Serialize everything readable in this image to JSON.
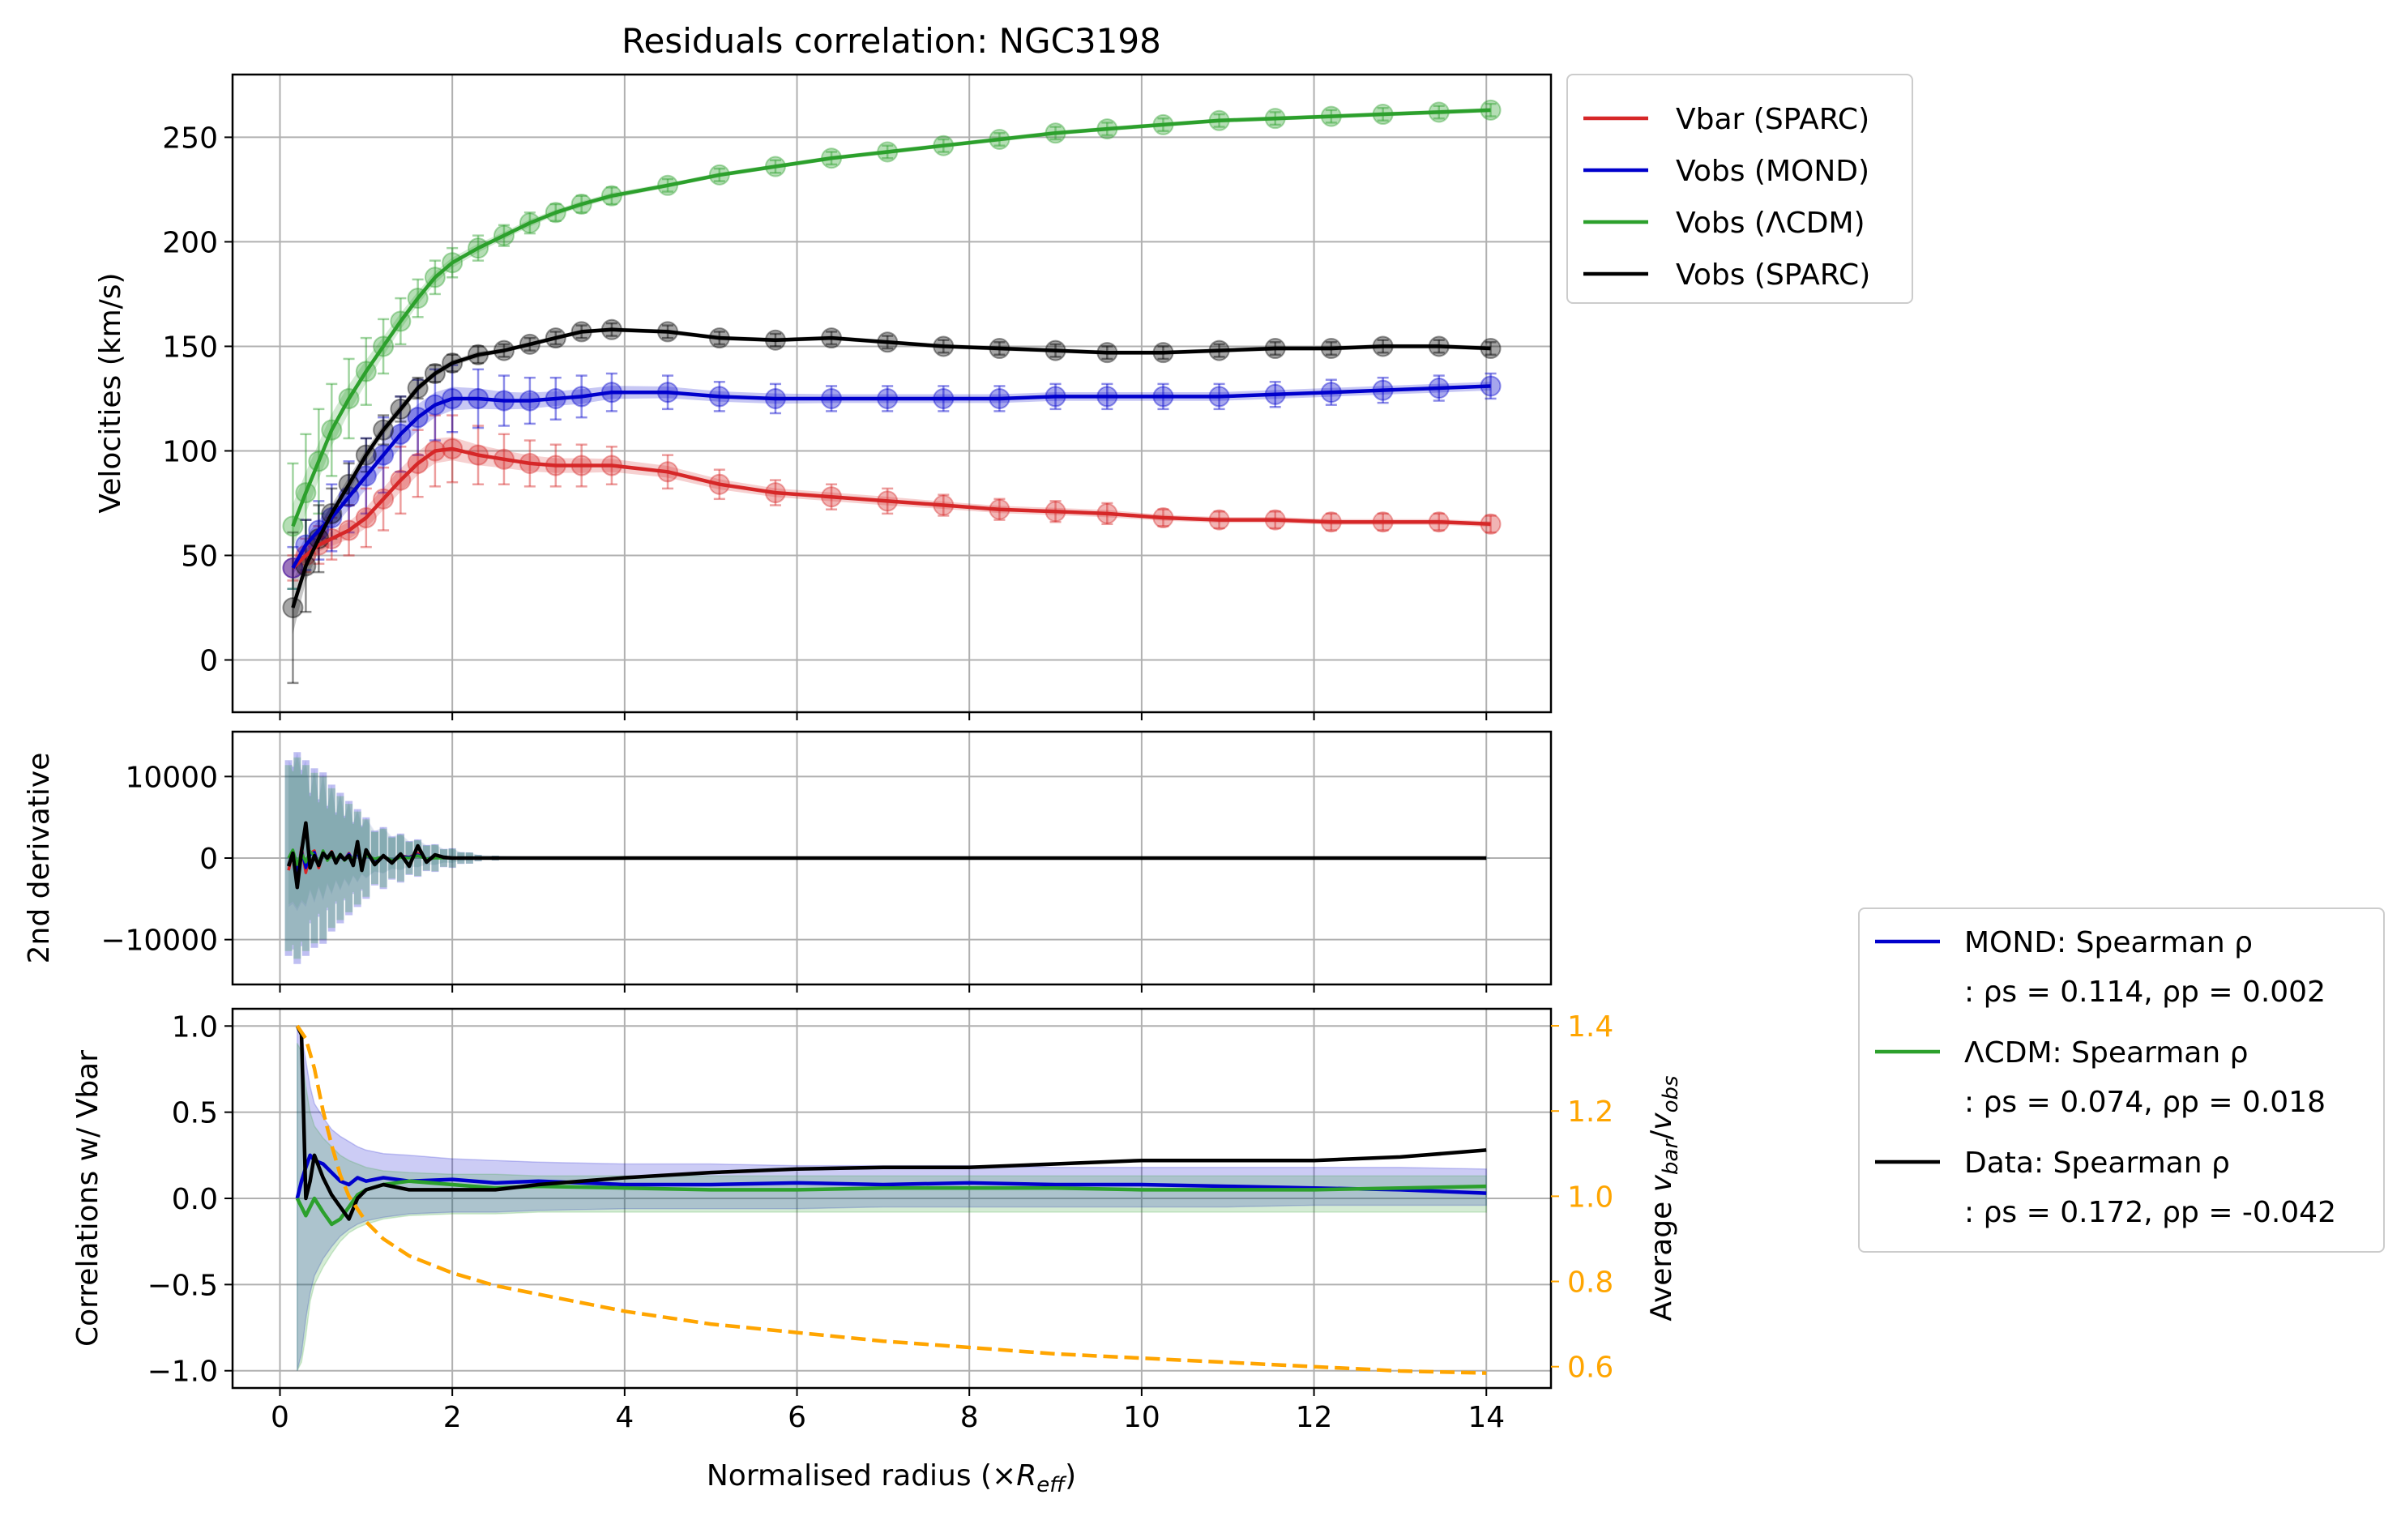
{
  "colors": {
    "vbar": "#d62728",
    "mond": "#0000cc",
    "lcdm": "#2ca02c",
    "data": "#000000",
    "ratio": "#ffa500",
    "grid": "#b0b0b0",
    "axis": "#000000"
  },
  "chart_data": [
    {
      "type": "line",
      "title": "Residuals correlation: NGC3198",
      "xlabel": "",
      "ylabel": "Velocities (km/s)",
      "xlim": [
        -0.55,
        14.75
      ],
      "ylim": [
        -25,
        280
      ],
      "xticks": [
        0,
        2,
        4,
        6,
        8,
        10,
        12,
        14
      ],
      "yticks": [
        0,
        50,
        100,
        150,
        200,
        250
      ],
      "ytick_labels": [
        "0",
        "50",
        "100",
        "150",
        "200",
        "250"
      ],
      "grid": true,
      "legend_position": "outside-top-right",
      "legend": [
        "Vbar (SPARC)",
        "Vobs (MOND)",
        "Vobs (ΛCDM)",
        "Vobs (SPARC)"
      ],
      "x": [
        0.15,
        0.3,
        0.45,
        0.6,
        0.8,
        1.0,
        1.2,
        1.4,
        1.6,
        1.8,
        2.0,
        2.3,
        2.6,
        2.9,
        3.2,
        3.5,
        3.85,
        4.5,
        5.1,
        5.75,
        6.4,
        7.05,
        7.7,
        8.35,
        9.0,
        9.6,
        10.25,
        10.9,
        11.55,
        12.2,
        12.8,
        13.45,
        14.05
      ],
      "series": [
        {
          "name": "Vbar (SPARC)",
          "key": "vbar",
          "values": [
            44,
            50,
            55,
            58,
            62,
            68,
            77,
            86,
            94,
            100,
            101,
            98,
            96,
            94,
            93,
            93,
            93,
            90,
            84,
            80,
            78,
            76,
            74,
            72,
            71,
            70,
            68,
            67,
            67,
            66,
            66,
            66,
            65
          ],
          "err": [
            6,
            8,
            9,
            10,
            12,
            14,
            15,
            16,
            16,
            17,
            16,
            14,
            12,
            11,
            10,
            10,
            9,
            8,
            7,
            6,
            6,
            6,
            5,
            5,
            5,
            5,
            4,
            4,
            4,
            4,
            4,
            4,
            4
          ]
        },
        {
          "name": "Vobs (MOND)",
          "key": "mond",
          "values": [
            44,
            55,
            62,
            68,
            78,
            88,
            98,
            108,
            116,
            122,
            125,
            125,
            124,
            124,
            125,
            126,
            128,
            128,
            126,
            125,
            125,
            125,
            125,
            125,
            126,
            126,
            126,
            126,
            127,
            128,
            129,
            130,
            131
          ],
          "err": [
            10,
            12,
            14,
            16,
            17,
            18,
            18,
            18,
            18,
            17,
            16,
            14,
            12,
            11,
            10,
            10,
            9,
            8,
            7,
            7,
            6,
            6,
            6,
            6,
            6,
            6,
            6,
            6,
            6,
            6,
            6,
            6,
            6
          ]
        },
        {
          "name": "Vobs (ΛCDM)",
          "key": "lcdm",
          "values": [
            64,
            80,
            95,
            110,
            125,
            138,
            150,
            162,
            173,
            183,
            190,
            197,
            203,
            209,
            214,
            218,
            222,
            227,
            232,
            236,
            240,
            243,
            246,
            249,
            252,
            254,
            256,
            258,
            259,
            260,
            261,
            262,
            263
          ],
          "err": [
            30,
            28,
            25,
            22,
            19,
            16,
            13,
            11,
            9,
            8,
            7,
            6,
            5,
            5,
            4,
            4,
            4,
            3,
            3,
            3,
            3,
            3,
            3,
            3,
            3,
            3,
            3,
            3,
            3,
            3,
            3,
            3,
            3
          ]
        },
        {
          "name": "Vobs (SPARC)",
          "key": "data",
          "values": [
            25,
            45,
            58,
            70,
            84,
            98,
            110,
            120,
            130,
            137,
            142,
            146,
            148,
            151,
            154,
            157,
            158,
            157,
            154,
            153,
            154,
            152,
            150,
            149,
            148,
            147,
            147,
            148,
            149,
            149,
            150,
            150,
            149
          ],
          "err": [
            36,
            22,
            16,
            12,
            10,
            8,
            7,
            6,
            5,
            4,
            4,
            4,
            3,
            3,
            3,
            3,
            3,
            3,
            3,
            3,
            3,
            3,
            3,
            3,
            3,
            3,
            3,
            3,
            3,
            3,
            3,
            3,
            3
          ]
        }
      ]
    },
    {
      "type": "line",
      "ylabel": "2nd derivative",
      "xlim": [
        -0.55,
        14.75
      ],
      "ylim": [
        -15500,
        15500
      ],
      "yticks": [
        -10000,
        0,
        10000
      ],
      "ytick_labels": [
        "−10000",
        "0",
        "10000"
      ],
      "grid": true,
      "x": [
        0.1,
        0.15,
        0.2,
        0.25,
        0.3,
        0.35,
        0.4,
        0.45,
        0.5,
        0.55,
        0.6,
        0.65,
        0.7,
        0.75,
        0.8,
        0.85,
        0.9,
        0.95,
        1.0,
        1.1,
        1.2,
        1.3,
        1.4,
        1.5,
        1.6,
        1.7,
        1.8,
        1.9,
        2.0,
        2.1,
        2.2,
        2.3,
        2.5,
        3.0,
        3.5,
        4.0,
        6.0,
        8.0,
        10.0,
        12.0,
        14.0
      ],
      "band_halfwidth": [
        12000,
        14000,
        13000,
        13500,
        12000,
        10000,
        11000,
        9000,
        10500,
        8000,
        9000,
        7000,
        8000,
        6500,
        7000,
        5500,
        6000,
        5000,
        5000,
        4200,
        3800,
        3300,
        3000,
        2600,
        2300,
        2000,
        1700,
        1400,
        1200,
        900,
        700,
        500,
        300,
        200,
        100,
        60,
        30,
        20,
        20,
        20,
        20
      ],
      "series": [
        {
          "name": "Vbar",
          "key": "vbar",
          "values": [
            -1500,
            800,
            -2200,
            1300,
            -1800,
            600,
            900,
            -1200,
            700,
            0,
            800,
            -500,
            300,
            -200,
            600,
            -400,
            1000,
            -1300,
            400,
            -300,
            200,
            -500,
            300,
            100,
            600,
            -200,
            100,
            0,
            0,
            0,
            0,
            0,
            0,
            0,
            0,
            0,
            0,
            0,
            0,
            0,
            0
          ]
        },
        {
          "name": "MOND",
          "key": "mond",
          "values": [
            -800,
            600,
            -1600,
            900,
            -1200,
            400,
            700,
            -900,
            500,
            0,
            600,
            -400,
            200,
            -200,
            500,
            -300,
            700,
            -900,
            300,
            -200,
            200,
            -300,
            200,
            100,
            400,
            -100,
            100,
            0,
            0,
            0,
            0,
            0,
            0,
            0,
            0,
            0,
            0,
            0,
            0,
            0,
            0
          ]
        },
        {
          "name": "ΛCDM",
          "key": "lcdm",
          "values": [
            0,
            1000,
            -800,
            600,
            -500,
            800,
            300,
            -600,
            900,
            -300,
            400,
            -200,
            500,
            -300,
            200,
            -100,
            900,
            -500,
            300,
            -100,
            200,
            -300,
            100,
            0,
            300,
            -100,
            0,
            0,
            0,
            0,
            0,
            0,
            0,
            0,
            0,
            0,
            0,
            0,
            0,
            0,
            0
          ]
        },
        {
          "name": "Data",
          "key": "data",
          "values": [
            -1000,
            600,
            -3600,
            800,
            4300,
            -1200,
            300,
            -900,
            600,
            0,
            700,
            -600,
            400,
            -200,
            300,
            -900,
            2000,
            -1500,
            1000,
            -800,
            300,
            -600,
            500,
            -1000,
            1500,
            -500,
            400,
            100,
            0,
            0,
            0,
            0,
            0,
            0,
            0,
            0,
            0,
            0,
            0,
            0,
            0
          ]
        }
      ]
    },
    {
      "type": "line",
      "ylabel": "Correlations w/ Vbar",
      "y2label": "Average v_bar/v_obs",
      "xlabel": "Normalised radius (×R_eff)",
      "xlim": [
        -0.55,
        14.75
      ],
      "xticks": [
        0,
        2,
        4,
        6,
        8,
        10,
        12,
        14
      ],
      "ylim": [
        -1.1,
        1.1
      ],
      "yticks": [
        -1.0,
        -0.5,
        0.0,
        0.5,
        1.0
      ],
      "ytick_labels": [
        "−1.0",
        "−0.5",
        "0.0",
        "0.5",
        "1.0"
      ],
      "y2lim": [
        0.55,
        1.44
      ],
      "y2ticks": [
        0.6,
        0.8,
        1.0,
        1.2,
        1.4
      ],
      "y2tick_labels": [
        "0.6",
        "0.8",
        "1.0",
        "1.2",
        "1.4"
      ],
      "grid": true,
      "legend_position": "outside-lower-right",
      "legend": [
        {
          "line1": "MOND: Spearman ρ",
          "line2": ": ρs = 0.114, ρp = 0.002",
          "key": "mond"
        },
        {
          "line1": "ΛCDM: Spearman ρ",
          "line2": ": ρs = 0.074, ρp = 0.018",
          "key": "lcdm"
        },
        {
          "line1": "Data: Spearman ρ",
          "line2": ": ρs = 0.172, ρp = -0.042",
          "key": "data"
        }
      ],
      "x": [
        0.2,
        0.25,
        0.3,
        0.35,
        0.4,
        0.5,
        0.6,
        0.7,
        0.8,
        0.9,
        1.0,
        1.2,
        1.5,
        2.0,
        2.5,
        3.0,
        4.0,
        5.0,
        6.0,
        7.0,
        8.0,
        9.0,
        10.0,
        11.0,
        12.0,
        13.0,
        14.0
      ],
      "series": [
        {
          "name": "MOND",
          "key": "mond",
          "values": [
            0.0,
            0.1,
            0.18,
            0.25,
            0.22,
            0.2,
            0.15,
            0.1,
            0.08,
            0.12,
            0.1,
            0.12,
            0.1,
            0.11,
            0.09,
            0.1,
            0.08,
            0.08,
            0.09,
            0.08,
            0.09,
            0.08,
            0.08,
            0.07,
            0.06,
            0.05,
            0.03
          ],
          "band_lower": [
            -1.0,
            -0.9,
            -0.7,
            -0.55,
            -0.45,
            -0.35,
            -0.28,
            -0.22,
            -0.18,
            -0.15,
            -0.13,
            -0.11,
            -0.09,
            -0.08,
            -0.08,
            -0.07,
            -0.06,
            -0.06,
            -0.06,
            -0.05,
            -0.05,
            -0.05,
            -0.05,
            -0.05,
            -0.04,
            -0.04,
            -0.04
          ],
          "band_upper": [
            1.0,
            0.95,
            0.8,
            0.65,
            0.55,
            0.47,
            0.4,
            0.36,
            0.33,
            0.3,
            0.28,
            0.26,
            0.25,
            0.23,
            0.22,
            0.21,
            0.2,
            0.2,
            0.19,
            0.19,
            0.19,
            0.18,
            0.18,
            0.18,
            0.18,
            0.18,
            0.17
          ]
        },
        {
          "name": "ΛCDM",
          "key": "lcdm",
          "values": [
            0.0,
            -0.05,
            -0.1,
            -0.05,
            0.0,
            -0.08,
            -0.15,
            -0.12,
            -0.05,
            0.02,
            0.05,
            0.08,
            0.1,
            0.08,
            0.06,
            0.07,
            0.06,
            0.05,
            0.05,
            0.06,
            0.06,
            0.06,
            0.05,
            0.05,
            0.05,
            0.06,
            0.07
          ],
          "band_lower": [
            -1.0,
            -0.95,
            -0.8,
            -0.6,
            -0.5,
            -0.4,
            -0.32,
            -0.25,
            -0.2,
            -0.17,
            -0.15,
            -0.12,
            -0.1,
            -0.09,
            -0.09,
            -0.08,
            -0.08,
            -0.08,
            -0.08,
            -0.08,
            -0.08,
            -0.08,
            -0.08,
            -0.08,
            -0.08,
            -0.08,
            -0.08
          ],
          "band_upper": [
            0.9,
            0.85,
            0.65,
            0.5,
            0.42,
            0.35,
            0.3,
            0.25,
            0.22,
            0.2,
            0.18,
            0.16,
            0.15,
            0.14,
            0.14,
            0.13,
            0.13,
            0.13,
            0.13,
            0.13,
            0.13,
            0.13,
            0.13,
            0.13,
            0.13,
            0.13,
            0.13
          ]
        },
        {
          "name": "Data",
          "key": "data",
          "values": [
            1.0,
            0.95,
            0.0,
            0.1,
            0.25,
            0.12,
            0.02,
            -0.05,
            -0.12,
            0.0,
            0.05,
            0.08,
            0.05,
            0.05,
            0.05,
            0.08,
            0.12,
            0.15,
            0.17,
            0.18,
            0.18,
            0.2,
            0.22,
            0.22,
            0.22,
            0.24,
            0.28
          ]
        }
      ],
      "ratio_series": {
        "name": "Average v_bar/v_obs",
        "x": [
          0.2,
          0.3,
          0.4,
          0.5,
          0.6,
          0.7,
          0.8,
          1.0,
          1.2,
          1.5,
          2.0,
          2.5,
          3.0,
          4.0,
          5.0,
          6.0,
          7.0,
          8.0,
          9.0,
          10.0,
          11.0,
          12.0,
          13.0,
          14.0
        ],
        "values": [
          1.4,
          1.37,
          1.3,
          1.2,
          1.12,
          1.05,
          1.0,
          0.94,
          0.9,
          0.86,
          0.82,
          0.79,
          0.77,
          0.73,
          0.7,
          0.68,
          0.66,
          0.645,
          0.63,
          0.62,
          0.61,
          0.6,
          0.59,
          0.585
        ]
      }
    }
  ]
}
